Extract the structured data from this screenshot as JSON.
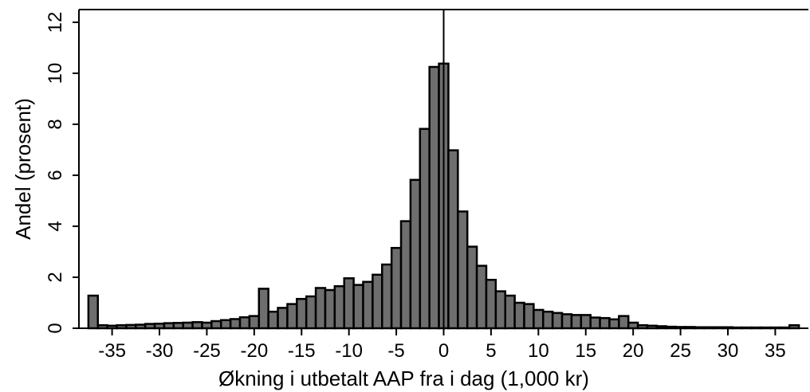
{
  "chart_data": {
    "type": "bar",
    "title": "",
    "xlabel": "Økning i utbetalt AAP fra i dag (1,000 kr)",
    "ylabel": "Andel (prosent)",
    "xlim": [
      -38.5,
      38.5
    ],
    "ylim": [
      0,
      12.5
    ],
    "xticks": [
      -35,
      -30,
      -25,
      -20,
      -15,
      -10,
      -5,
      0,
      5,
      10,
      15,
      20,
      25,
      30,
      35
    ],
    "xtick_labels": [
      "-35",
      "-30",
      "-25",
      "-20",
      "-15",
      "-10",
      "-5",
      "0",
      "5",
      "10",
      "15",
      "20",
      "25",
      "30",
      "35"
    ],
    "yticks": [
      0,
      2,
      4,
      6,
      8,
      10,
      12
    ],
    "ytick_labels": [
      "0",
      "2",
      "4",
      "6",
      "8",
      "10",
      "12"
    ],
    "bin_width": 1,
    "bin_centers": [
      -37,
      -36,
      -35,
      -34,
      -33,
      -32,
      -31,
      -30,
      -29,
      -28,
      -27,
      -26,
      -25,
      -24,
      -23,
      -22,
      -21,
      -20,
      -19,
      -18,
      -17,
      -16,
      -15,
      -14,
      -13,
      -12,
      -11,
      -10,
      -9,
      -8,
      -7,
      -6,
      -5,
      -4,
      -3,
      -2,
      -1,
      0,
      1,
      2,
      3,
      4,
      5,
      6,
      7,
      8,
      9,
      10,
      11,
      12,
      13,
      14,
      15,
      16,
      17,
      18,
      19,
      20,
      21,
      22,
      23,
      24,
      25,
      26,
      27,
      28,
      29,
      30,
      31,
      32,
      33,
      34,
      35,
      36,
      37
    ],
    "values": [
      1.28,
      0.12,
      0.1,
      0.12,
      0.13,
      0.14,
      0.17,
      0.18,
      0.2,
      0.21,
      0.22,
      0.24,
      0.22,
      0.28,
      0.32,
      0.36,
      0.43,
      0.48,
      1.55,
      0.65,
      0.8,
      0.95,
      1.15,
      1.25,
      1.58,
      1.5,
      1.65,
      1.96,
      1.7,
      1.82,
      2.1,
      2.5,
      3.15,
      4.2,
      5.82,
      7.82,
      10.25,
      10.38,
      6.98,
      4.58,
      3.2,
      2.45,
      1.9,
      1.45,
      1.28,
      1.0,
      0.95,
      0.72,
      0.65,
      0.6,
      0.55,
      0.52,
      0.52,
      0.42,
      0.4,
      0.35,
      0.48,
      0.22,
      0.12,
      0.1,
      0.08,
      0.06,
      0.05,
      0.05,
      0.04,
      0.04,
      0.04,
      0.04,
      0.03,
      0.03,
      0.03,
      0.03,
      0.03,
      0.03,
      0.12
    ],
    "reference_line_x": 0,
    "grid": false,
    "bar_color": "#6e6e6e",
    "bar_edge_color": "#000000"
  }
}
